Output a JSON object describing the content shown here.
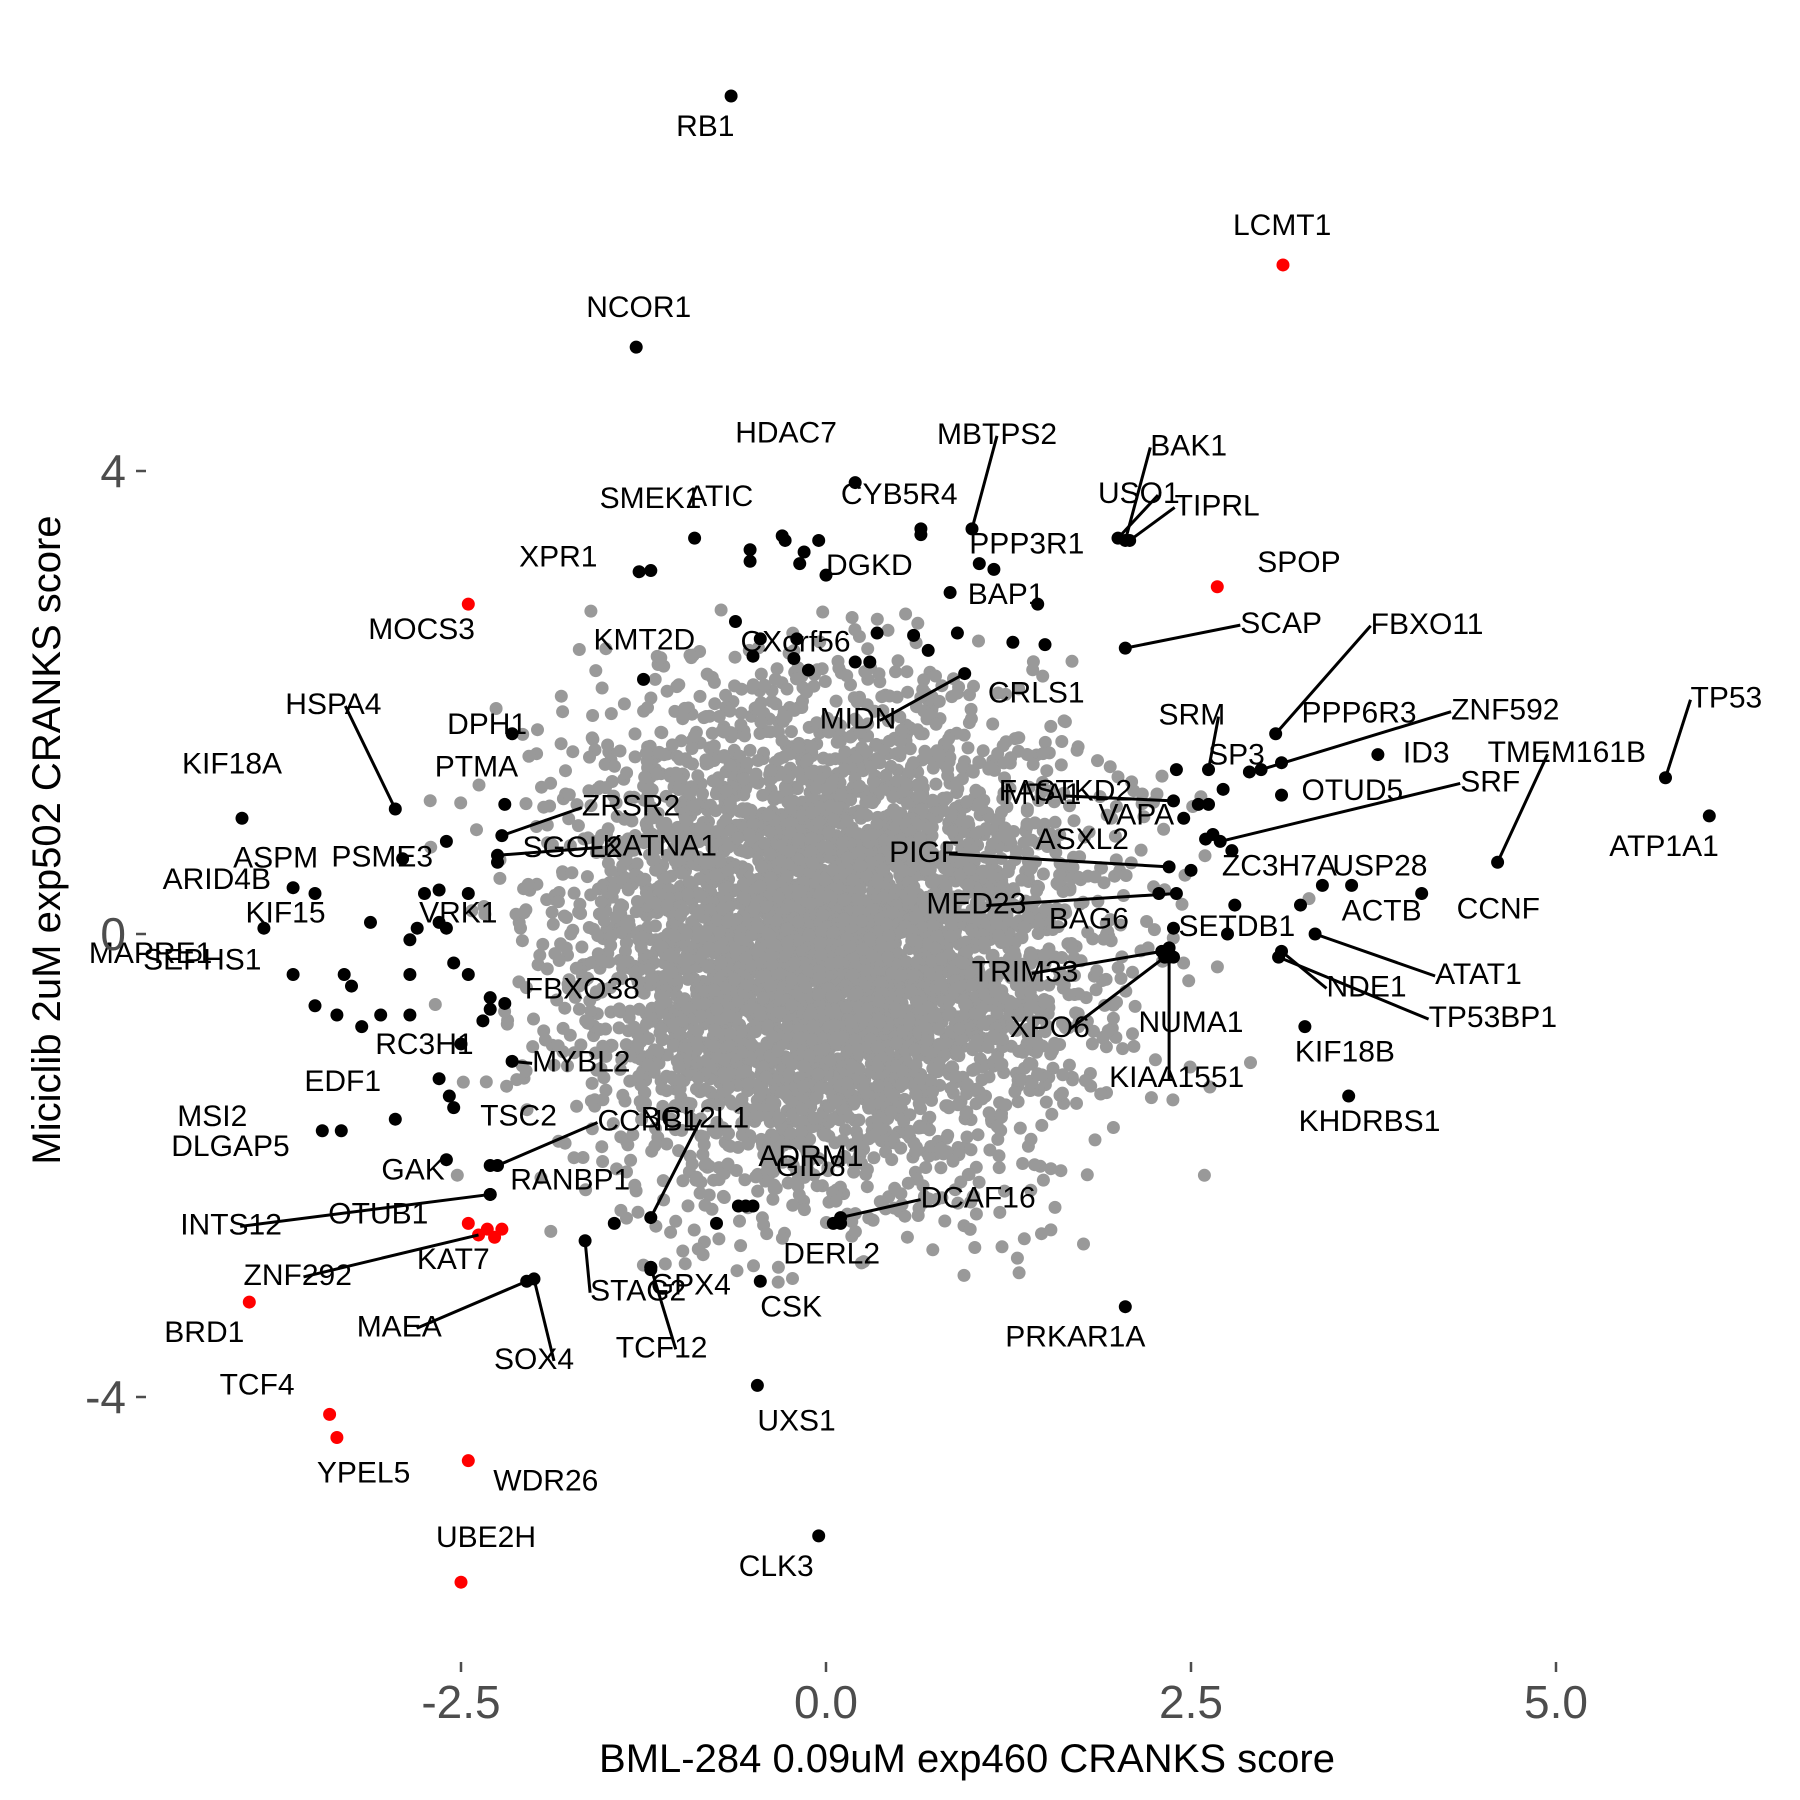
{
  "chart_data": {
    "type": "scatter",
    "xlabel": "BML-284 0.09uM exp460 CRANKS score",
    "ylabel": "Miciclib 2uM exp502 CRANKS score",
    "x_ticks": [
      -2.5,
      0.0,
      2.5,
      5.0
    ],
    "x_tick_labels": [
      "-2.5",
      "0.0",
      "2.5",
      "5.0"
    ],
    "y_ticks": [
      -4,
      0,
      4
    ],
    "y_tick_labels": [
      "-4",
      "0",
      "4"
    ],
    "xlim": [
      -4.25,
      6.25
    ],
    "ylim": [
      -6.05,
      7.2
    ],
    "grid": false,
    "legend": "none",
    "colors": {
      "background_points": "#999999",
      "highlight": "#000000",
      "significant": "#ff0000"
    },
    "background_cloud": {
      "center": [
        0.0,
        -0.1
      ],
      "sd": [
        0.85,
        1.05
      ],
      "count": 5200,
      "seed": 7
    },
    "points": [
      {
        "label": "RB1",
        "x": -0.65,
        "y": 7.24,
        "color": "black"
      },
      {
        "label": "LCMT1",
        "x": 3.13,
        "y": 5.78,
        "color": "red"
      },
      {
        "label": "NCOR1",
        "x": -1.3,
        "y": 5.07,
        "color": "black"
      },
      {
        "label": "HDAC7",
        "x": 0.2,
        "y": 3.9,
        "color": "black"
      },
      {
        "label": "MBTPS2",
        "x": 1.0,
        "y": 3.5,
        "color": "black"
      },
      {
        "label": "BAK1",
        "x": 2.05,
        "y": 3.4,
        "color": "black"
      },
      {
        "label": "USO1",
        "x": 2.0,
        "y": 3.42,
        "color": "black"
      },
      {
        "label": "TIPRL",
        "x": 2.08,
        "y": 3.4,
        "color": "black"
      },
      {
        "label": "SMEK1",
        "x": -0.9,
        "y": 3.42,
        "color": "black"
      },
      {
        "label": "ATIC",
        "x": -0.3,
        "y": 3.44,
        "color": "black"
      },
      {
        "label": "CYB5R4",
        "x": 0.65,
        "y": 3.5,
        "color": "black"
      },
      {
        "label": "PPP3R1",
        "x": 1.05,
        "y": 3.2,
        "color": "black"
      },
      {
        "label": "SPOP",
        "x": 2.68,
        "y": 3.0,
        "color": "red"
      },
      {
        "label": "XPR1",
        "x": -1.28,
        "y": 3.13,
        "color": "black"
      },
      {
        "label": "CXorf56",
        "x": -0.62,
        "y": 2.7,
        "color": "black"
      },
      {
        "label": "DGKD",
        "x": 0.0,
        "y": 3.1,
        "color": "black"
      },
      {
        "label": "BAP1",
        "x": 1.45,
        "y": 2.85,
        "color": "black"
      },
      {
        "label": "MOCS3",
        "x": -2.45,
        "y": 2.85,
        "color": "red"
      },
      {
        "label": "SCAP",
        "x": 2.05,
        "y": 2.47,
        "color": "black"
      },
      {
        "label": "FBXO11",
        "x": 3.08,
        "y": 1.73,
        "color": "black"
      },
      {
        "label": "KMT2D",
        "x": -1.25,
        "y": 2.2,
        "color": "black"
      },
      {
        "label": "MIDN",
        "x": 0.95,
        "y": 2.25,
        "color": "black"
      },
      {
        "label": "CRLS1",
        "x": 1.28,
        "y": 2.52,
        "color": "black"
      },
      {
        "label": "SRM",
        "x": 2.62,
        "y": 1.42,
        "color": "black"
      },
      {
        "label": "PPP6R3",
        "x": 3.12,
        "y": 1.48,
        "color": "black"
      },
      {
        "label": "ZNF592",
        "x": 2.98,
        "y": 1.42,
        "color": "black"
      },
      {
        "label": "TP53",
        "x": 5.75,
        "y": 1.35,
        "color": "black"
      },
      {
        "label": "DPH1",
        "x": -2.15,
        "y": 1.73,
        "color": "black"
      },
      {
        "label": "HSPA4",
        "x": -2.95,
        "y": 1.08,
        "color": "black"
      },
      {
        "label": "KIF18A",
        "x": -4.0,
        "y": 1.0,
        "color": "black"
      },
      {
        "label": "FASTKD2",
        "x": 2.45,
        "y": 1.0,
        "color": "black"
      },
      {
        "label": "SP3",
        "x": 2.72,
        "y": 1.25,
        "color": "black"
      },
      {
        "label": "ID3",
        "x": 3.78,
        "y": 1.55,
        "color": "black"
      },
      {
        "label": "TMEM161B",
        "x": 4.6,
        "y": 0.62,
        "color": "black"
      },
      {
        "label": "PTMA",
        "x": -2.2,
        "y": 1.12,
        "color": "black"
      },
      {
        "label": "ZRSR2",
        "x": -2.22,
        "y": 0.85,
        "color": "black"
      },
      {
        "label": "MTA1",
        "x": 2.38,
        "y": 1.15,
        "color": "black"
      },
      {
        "label": "VAPA",
        "x": 2.62,
        "y": 1.12,
        "color": "black"
      },
      {
        "label": "OTUD5",
        "x": 3.12,
        "y": 1.2,
        "color": "black"
      },
      {
        "label": "SRF",
        "x": 2.7,
        "y": 0.8,
        "color": "black"
      },
      {
        "label": "ATP1A1",
        "x": 6.05,
        "y": 1.02,
        "color": "black"
      },
      {
        "label": "PSME3",
        "x": -2.6,
        "y": 0.8,
        "color": "black"
      },
      {
        "label": "ARID4B",
        "x": -2.9,
        "y": 0.65,
        "color": "black"
      },
      {
        "label": "SGOL2",
        "x": -2.25,
        "y": 0.62,
        "color": "black"
      },
      {
        "label": "PIGF",
        "x": 2.35,
        "y": 0.58,
        "color": "black"
      },
      {
        "label": "ASXL2",
        "x": 2.6,
        "y": 0.82,
        "color": "black"
      },
      {
        "label": "ZC3H7A",
        "x": 2.78,
        "y": 0.72,
        "color": "black"
      },
      {
        "label": "USP28",
        "x": 3.4,
        "y": 0.42,
        "color": "black"
      },
      {
        "label": "ASPM",
        "x": -3.65,
        "y": 0.4,
        "color": "black"
      },
      {
        "label": "KATNA1",
        "x": -2.25,
        "y": 0.68,
        "color": "black"
      },
      {
        "label": "CCNF",
        "x": 4.08,
        "y": 0.35,
        "color": "black"
      },
      {
        "label": "MED23",
        "x": 2.4,
        "y": 0.35,
        "color": "black"
      },
      {
        "label": "BAG6",
        "x": 2.28,
        "y": 0.35,
        "color": "black"
      },
      {
        "label": "ACTB",
        "x": 3.6,
        "y": 0.42,
        "color": "black"
      },
      {
        "label": "KIF15",
        "x": -3.12,
        "y": 0.1,
        "color": "black"
      },
      {
        "label": "SETDB1",
        "x": 2.38,
        "y": 0.05,
        "color": "black"
      },
      {
        "label": "MAPRE1",
        "x": -3.85,
        "y": 0.05,
        "color": "black"
      },
      {
        "label": "VRK1",
        "x": -2.65,
        "y": 0.1,
        "color": "black"
      },
      {
        "label": "TRIM33",
        "x": 2.3,
        "y": -0.15,
        "color": "black"
      },
      {
        "label": "ATAT1",
        "x": 3.35,
        "y": 0.0,
        "color": "black"
      },
      {
        "label": "NDE1",
        "x": 3.12,
        "y": -0.15,
        "color": "black"
      },
      {
        "label": "SEPHS1",
        "x": -3.65,
        "y": -0.35,
        "color": "black"
      },
      {
        "label": "TP53BP1",
        "x": 3.1,
        "y": -0.2,
        "color": "black"
      },
      {
        "label": "FBXO38",
        "x": -2.2,
        "y": -0.6,
        "color": "black"
      },
      {
        "label": "XPO6",
        "x": 2.32,
        "y": -0.2,
        "color": "black"
      },
      {
        "label": "NUMA1",
        "x": 2.38,
        "y": -0.2,
        "color": "black"
      },
      {
        "label": "RC3H1",
        "x": -2.3,
        "y": -0.65,
        "color": "black"
      },
      {
        "label": "KIF18B",
        "x": 3.28,
        "y": -0.8,
        "color": "black"
      },
      {
        "label": "MYBL2",
        "x": -2.15,
        "y": -1.1,
        "color": "black"
      },
      {
        "label": "KIAA1551",
        "x": 2.35,
        "y": -0.2,
        "color": "black"
      },
      {
        "label": "KHDRBS1",
        "x": 3.58,
        "y": -1.4,
        "color": "black"
      },
      {
        "label": "EDF1",
        "x": -2.58,
        "y": -1.4,
        "color": "black"
      },
      {
        "label": "MSI2",
        "x": -3.45,
        "y": -1.7,
        "color": "black"
      },
      {
        "label": "TSC2",
        "x": -2.3,
        "y": -2.0,
        "color": "black"
      },
      {
        "label": "CCNB1",
        "x": -2.25,
        "y": -2.0,
        "color": "black"
      },
      {
        "label": "BCL2L1",
        "x": -1.2,
        "y": -2.45,
        "color": "black"
      },
      {
        "label": "DLGAP5",
        "x": -3.32,
        "y": -1.7,
        "color": "black"
      },
      {
        "label": "GAK",
        "x": -2.6,
        "y": -1.95,
        "color": "black"
      },
      {
        "label": "ADRM1",
        "x": -0.6,
        "y": -2.35,
        "color": "black"
      },
      {
        "label": "GID8",
        "x": -0.55,
        "y": -2.35,
        "color": "black"
      },
      {
        "label": "RANBP1",
        "x": -2.3,
        "y": -2.25,
        "color": "black"
      },
      {
        "label": "INTS12",
        "x": -2.3,
        "y": -2.25,
        "color": "black"
      },
      {
        "label": "OTUB1",
        "x": -2.45,
        "y": -2.5,
        "color": "red"
      },
      {
        "label": "DCAF16",
        "x": 0.1,
        "y": -2.45,
        "color": "black"
      },
      {
        "label": "ZNF292",
        "x": -2.38,
        "y": -2.6,
        "color": "red"
      },
      {
        "label": "KAT7",
        "x": -2.22,
        "y": -2.55,
        "color": "red"
      },
      {
        "label": "GPX4",
        "x": -1.2,
        "y": -2.9,
        "color": "black"
      },
      {
        "label": "DERL2",
        "x": 0.05,
        "y": -2.5,
        "color": "black"
      },
      {
        "label": "STAG2",
        "x": -1.65,
        "y": -2.65,
        "color": "black"
      },
      {
        "label": "CSK",
        "x": -0.45,
        "y": -3.0,
        "color": "black"
      },
      {
        "label": "BRD1",
        "x": -3.95,
        "y": -3.18,
        "color": "red"
      },
      {
        "label": "MAEA",
        "x": -2.05,
        "y": -3.0,
        "color": "black"
      },
      {
        "label": "SOX4",
        "x": -2.0,
        "y": -2.98,
        "color": "black"
      },
      {
        "label": "PRKAR1A",
        "x": 2.05,
        "y": -3.22,
        "color": "black"
      },
      {
        "label": "TCF12",
        "x": -1.2,
        "y": -2.88,
        "color": "black"
      },
      {
        "label": "UXS1",
        "x": -0.47,
        "y": -3.9,
        "color": "black"
      },
      {
        "label": "TCF4",
        "x": -3.4,
        "y": -4.15,
        "color": "red"
      },
      {
        "label": "YPEL5",
        "x": -3.35,
        "y": -4.35,
        "color": "red"
      },
      {
        "label": "WDR26",
        "x": -2.45,
        "y": -4.55,
        "color": "red"
      },
      {
        "label": "CLK3",
        "x": -0.05,
        "y": -5.2,
        "color": "black"
      },
      {
        "label": "UBE2H",
        "x": -2.5,
        "y": -5.6,
        "color": "red"
      }
    ],
    "unlabeled_points": [
      {
        "x": -0.52,
        "y": 3.32,
        "color": "black"
      },
      {
        "x": -0.52,
        "y": 3.22,
        "color": "black"
      },
      {
        "x": -0.28,
        "y": 3.4,
        "color": "black"
      },
      {
        "x": -0.05,
        "y": 3.4,
        "color": "black"
      },
      {
        "x": -0.15,
        "y": 3.3,
        "color": "black"
      },
      {
        "x": -0.18,
        "y": 3.2,
        "color": "black"
      },
      {
        "x": 0.65,
        "y": 3.45,
        "color": "black"
      },
      {
        "x": 1.15,
        "y": 3.15,
        "color": "black"
      },
      {
        "x": 0.85,
        "y": 2.95,
        "color": "black"
      },
      {
        "x": 0.9,
        "y": 2.6,
        "color": "black"
      },
      {
        "x": 1.5,
        "y": 2.5,
        "color": "black"
      },
      {
        "x": -1.2,
        "y": 3.14,
        "color": "black"
      },
      {
        "x": -0.45,
        "y": 2.55,
        "color": "black"
      },
      {
        "x": -0.2,
        "y": 2.55,
        "color": "black"
      },
      {
        "x": 0.35,
        "y": 2.6,
        "color": "black"
      },
      {
        "x": 0.6,
        "y": 2.58,
        "color": "black"
      },
      {
        "x": 0.7,
        "y": 2.45,
        "color": "black"
      },
      {
        "x": 0.2,
        "y": 2.35,
        "color": "black"
      },
      {
        "x": 0.3,
        "y": 2.35,
        "color": "black"
      },
      {
        "x": -0.5,
        "y": 2.4,
        "color": "black"
      },
      {
        "x": -0.22,
        "y": 2.38,
        "color": "black"
      },
      {
        "x": -0.12,
        "y": 2.28,
        "color": "black"
      },
      {
        "x": 2.4,
        "y": 1.42,
        "color": "black"
      },
      {
        "x": 2.9,
        "y": 1.4,
        "color": "black"
      },
      {
        "x": 2.55,
        "y": 1.12,
        "color": "black"
      },
      {
        "x": 2.65,
        "y": 0.86,
        "color": "black"
      },
      {
        "x": 2.5,
        "y": 0.55,
        "color": "black"
      },
      {
        "x": 2.75,
        "y": 0.0,
        "color": "black"
      },
      {
        "x": 2.8,
        "y": 0.25,
        "color": "black"
      },
      {
        "x": 3.25,
        "y": 0.25,
        "color": "black"
      },
      {
        "x": 2.35,
        "y": -0.12,
        "color": "black"
      },
      {
        "x": -3.5,
        "y": 0.35,
        "color": "black"
      },
      {
        "x": -2.75,
        "y": 0.35,
        "color": "black"
      },
      {
        "x": -2.65,
        "y": 0.38,
        "color": "black"
      },
      {
        "x": -2.45,
        "y": 0.35,
        "color": "black"
      },
      {
        "x": -2.8,
        "y": 0.05,
        "color": "black"
      },
      {
        "x": -2.6,
        "y": 0.05,
        "color": "black"
      },
      {
        "x": -2.85,
        "y": -0.05,
        "color": "black"
      },
      {
        "x": -2.55,
        "y": -0.25,
        "color": "black"
      },
      {
        "x": -2.45,
        "y": -0.35,
        "color": "black"
      },
      {
        "x": -2.85,
        "y": -0.35,
        "color": "black"
      },
      {
        "x": -3.3,
        "y": -0.35,
        "color": "black"
      },
      {
        "x": -3.25,
        "y": -0.45,
        "color": "black"
      },
      {
        "x": -3.35,
        "y": -0.7,
        "color": "black"
      },
      {
        "x": -3.18,
        "y": -0.8,
        "color": "black"
      },
      {
        "x": -3.05,
        "y": -0.7,
        "color": "black"
      },
      {
        "x": -2.85,
        "y": -0.7,
        "color": "black"
      },
      {
        "x": -3.5,
        "y": -0.62,
        "color": "black"
      },
      {
        "x": -2.3,
        "y": -0.55,
        "color": "black"
      },
      {
        "x": -2.35,
        "y": -0.75,
        "color": "black"
      },
      {
        "x": -2.5,
        "y": -0.95,
        "color": "black"
      },
      {
        "x": -2.65,
        "y": -1.25,
        "color": "black"
      },
      {
        "x": -2.55,
        "y": -1.5,
        "color": "black"
      },
      {
        "x": -2.95,
        "y": -1.6,
        "color": "black"
      },
      {
        "x": -1.45,
        "y": -2.5,
        "color": "black"
      },
      {
        "x": -0.75,
        "y": -2.5,
        "color": "black"
      },
      {
        "x": -0.5,
        "y": -2.35,
        "color": "black"
      },
      {
        "x": 0.1,
        "y": -2.5,
        "color": "black"
      },
      {
        "x": -1.2,
        "y": -2.88,
        "color": "black"
      },
      {
        "x": -2.32,
        "y": -2.55,
        "color": "red"
      },
      {
        "x": -2.27,
        "y": -2.62,
        "color": "red"
      }
    ]
  }
}
